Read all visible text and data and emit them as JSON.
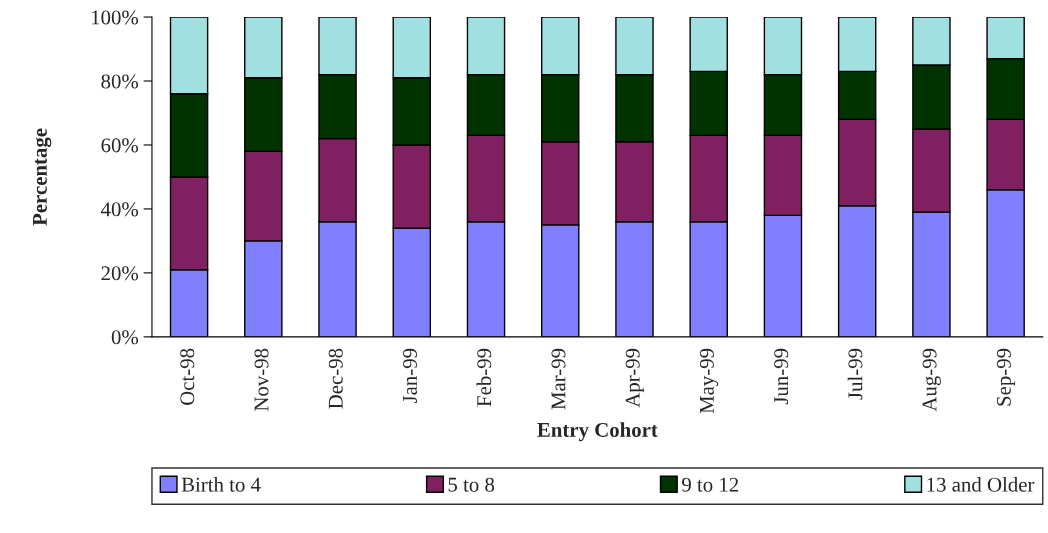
{
  "chart_data": {
    "type": "bar",
    "stacked": true,
    "xlabel": "Entry Cohort",
    "ylabel": "Percentage",
    "categories": [
      "Oct-98",
      "Nov-98",
      "Dec-98",
      "Jan-99",
      "Feb-99",
      "Mar-99",
      "Apr-99",
      "May-99",
      "Jun-99",
      "Jul-99",
      "Aug-99",
      "Sep-99"
    ],
    "series": [
      {
        "name": "Birth to 4",
        "color": "#8080ff",
        "values": [
          21,
          30,
          36,
          34,
          36,
          35,
          36,
          36,
          38,
          41,
          39,
          46
        ]
      },
      {
        "name": "5 to 8",
        "color": "#802060",
        "values": [
          29,
          28,
          26,
          26,
          27,
          26,
          25,
          27,
          25,
          27,
          26,
          22
        ]
      },
      {
        "name": "9 to 12",
        "color": "#003300",
        "values": [
          26,
          23,
          20,
          21,
          19,
          21,
          21,
          20,
          19,
          15,
          20,
          19
        ]
      },
      {
        "name": "13 and Older",
        "color": "#a0e0e0",
        "values": [
          24,
          19,
          18,
          19,
          18,
          18,
          18,
          17,
          18,
          17,
          15,
          13
        ]
      }
    ],
    "ylim": [
      0,
      100
    ],
    "yticks": [
      {
        "value": 0,
        "label": "0%"
      },
      {
        "value": 20,
        "label": "20%"
      },
      {
        "value": 40,
        "label": "40%"
      },
      {
        "value": 60,
        "label": "60%"
      },
      {
        "value": 80,
        "label": "80%"
      },
      {
        "value": 100,
        "label": "100%"
      }
    ],
    "grid": false,
    "legend": "bottom"
  }
}
